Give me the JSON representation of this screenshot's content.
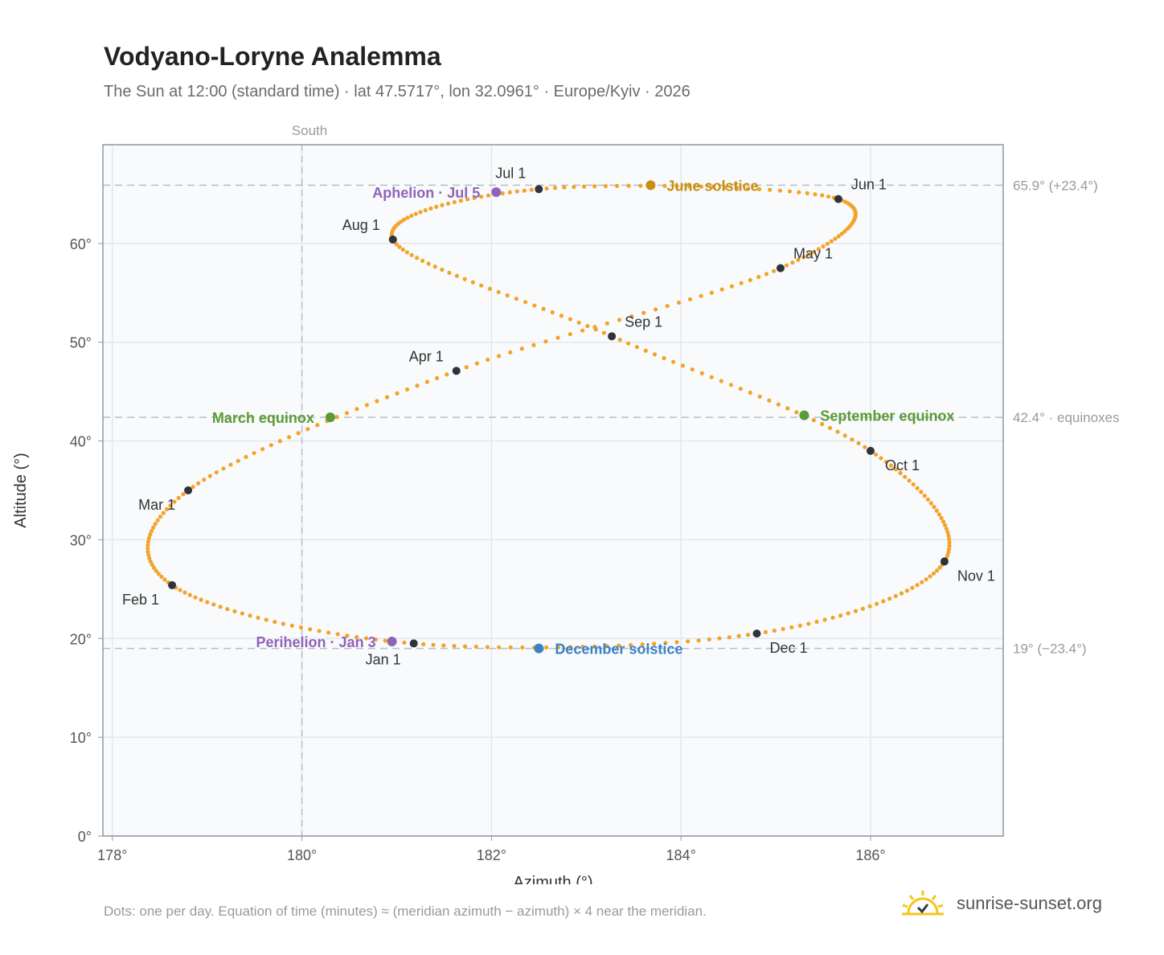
{
  "header": {
    "title": "Vodyano-Loryne Analemma",
    "subtitle": "The Sun at 12:00 (standard time) · lat 47.5717°, lon 32.0961° · Europe/Kyiv · 2026"
  },
  "footer": {
    "note": "Dots: one per day. Equation of time (minutes) ≈ (meridian azimuth − azimuth) × 4 near the meridian.",
    "brand": "sunrise-sunset.org"
  },
  "colors": {
    "path": "#f2a42a",
    "month_marker": "#2f343b",
    "equinox": "#5b9a35",
    "june_solstice": "#c98f0e",
    "december_solstice": "#3a82c6",
    "apsis": "#9163b8",
    "grid": "#e3e8ee",
    "plot_bg": "#f8fafc",
    "frame": "#8d98a6",
    "ref_line": "#b5bfca"
  },
  "chart_data": {
    "type": "scatter",
    "xlabel": "Azimuth (°)",
    "ylabel": "Altitude (°)",
    "xlim": [
      177.9,
      187.4
    ],
    "ylim": [
      0,
      70
    ],
    "xticks": [
      {
        "value": 178,
        "label": "178°"
      },
      {
        "value": 180,
        "label": "180°"
      },
      {
        "value": 182,
        "label": "182°"
      },
      {
        "value": 184,
        "label": "184°"
      },
      {
        "value": 186,
        "label": "186°"
      }
    ],
    "yticks": [
      {
        "value": 0,
        "label": "0°"
      },
      {
        "value": 10,
        "label": "10°"
      },
      {
        "value": 20,
        "label": "20°"
      },
      {
        "value": 30,
        "label": "30°"
      },
      {
        "value": 40,
        "label": "40°"
      },
      {
        "value": 50,
        "label": "50°"
      },
      {
        "value": 60,
        "label": "60°"
      }
    ],
    "grid": true,
    "meridian": {
      "azimuth": 180,
      "label": "South"
    },
    "reference_lines": [
      {
        "altitude": 65.9,
        "label": "65.9° (+23.4°)"
      },
      {
        "altitude": 42.4,
        "label": "42.4° · equinoxes"
      },
      {
        "altitude": 19,
        "label": "19° (−23.4°)"
      }
    ],
    "month_markers": [
      {
        "label": "Jan 1",
        "az": 181.18,
        "alt": 19.5
      },
      {
        "label": "Feb 1",
        "az": 178.63,
        "alt": 25.4
      },
      {
        "label": "Mar 1",
        "az": 178.8,
        "alt": 35.0
      },
      {
        "label": "Apr 1",
        "az": 181.63,
        "alt": 47.1
      },
      {
        "label": "May 1",
        "az": 185.05,
        "alt": 57.5
      },
      {
        "label": "Jun 1",
        "az": 185.66,
        "alt": 64.5
      },
      {
        "label": "Jul 1",
        "az": 182.5,
        "alt": 65.5
      },
      {
        "label": "Aug 1",
        "az": 180.96,
        "alt": 60.4
      },
      {
        "label": "Sep 1",
        "az": 183.27,
        "alt": 50.6
      },
      {
        "label": "Oct 1",
        "az": 186.0,
        "alt": 39.0
      },
      {
        "label": "Nov 1",
        "az": 186.78,
        "alt": 27.8
      },
      {
        "label": "Dec 1",
        "az": 184.8,
        "alt": 20.5
      },
      {
        "label": "",
        "az": 181.18,
        "alt": 19.5
      }
    ],
    "events": [
      {
        "label": "March equinox",
        "az": 180.3,
        "alt": 42.4,
        "color": "#5b9a35",
        "side": "left"
      },
      {
        "label": "September equinox",
        "az": 185.3,
        "alt": 42.6,
        "color": "#5b9a35",
        "side": "right"
      },
      {
        "label": "June solstice",
        "az": 183.68,
        "alt": 65.9,
        "color": "#c98f0e",
        "side": "right"
      },
      {
        "label": "December solstice",
        "az": 182.5,
        "alt": 19.0,
        "color": "#3a82c6",
        "side": "right"
      },
      {
        "label": "Aphelion · Jul 5",
        "az": 182.05,
        "alt": 65.2,
        "color": "#9163b8",
        "side": "left"
      },
      {
        "label": "Perihelion · Jan 3",
        "az": 180.95,
        "alt": 19.7,
        "color": "#9163b8",
        "side": "left"
      }
    ]
  }
}
